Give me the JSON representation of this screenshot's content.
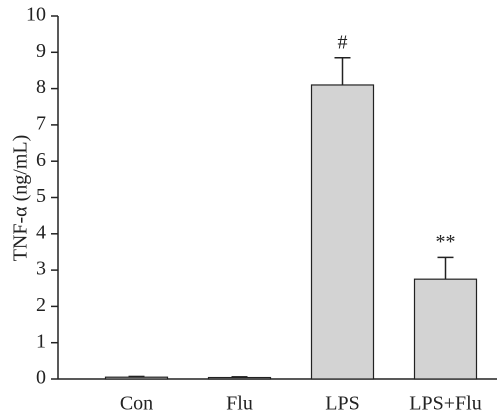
{
  "chart_data": {
    "type": "bar",
    "y_label": "TNF-α (ng/mL)",
    "categories": [
      "Con",
      "Flu",
      "LPS",
      "LPS+Flu"
    ],
    "values": [
      0.05,
      0.04,
      8.1,
      2.75
    ],
    "errors": [
      0.02,
      0.02,
      0.75,
      0.6
    ],
    "annotations": [
      null,
      null,
      "#",
      "**"
    ],
    "color": "#d3d3d3",
    "ylim": [
      0,
      10
    ],
    "yticks": [
      0,
      1,
      2,
      3,
      4,
      5,
      6,
      7,
      8,
      9,
      10
    ]
  }
}
